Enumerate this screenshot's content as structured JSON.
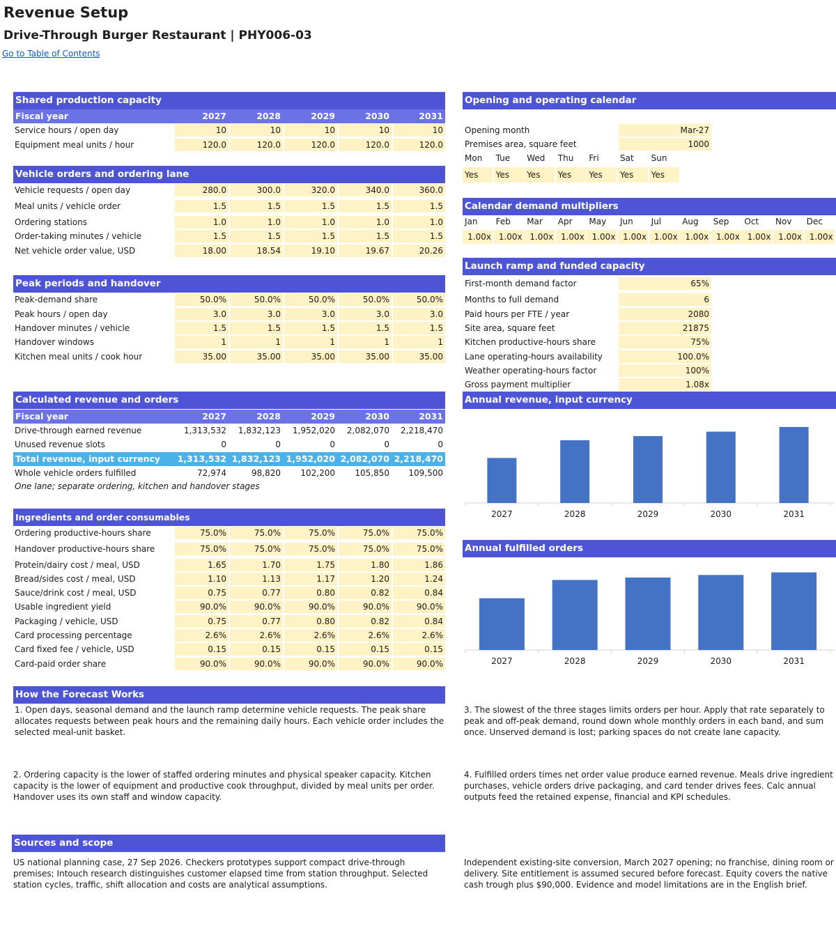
{
  "page": {
    "title": "Revenue Setup",
    "subtitle": "Drive-Through Burger Restaurant | PHY006-03",
    "toc_link": "Go to Table of Contents"
  },
  "years": [
    "2027",
    "2028",
    "2029",
    "2030",
    "2031"
  ],
  "shared": {
    "header": "Shared production capacity",
    "fiscal_label": "Fiscal year",
    "rows": [
      {
        "label": "Service hours / open day",
        "values": [
          "10",
          "10",
          "10",
          "10",
          "10"
        ]
      },
      {
        "label": "Equipment meal units / hour",
        "values": [
          "120.0",
          "120.0",
          "120.0",
          "120.0",
          "120.0"
        ]
      }
    ]
  },
  "vehicle": {
    "header": "Vehicle orders and ordering lane",
    "rows": [
      {
        "label": "Vehicle requests / open day",
        "values": [
          "280.0",
          "300.0",
          "320.0",
          "340.0",
          "360.0"
        ]
      },
      {
        "label": "Meal units / vehicle order",
        "values": [
          "1.5",
          "1.5",
          "1.5",
          "1.5",
          "1.5"
        ]
      },
      {
        "label": "Ordering stations",
        "values": [
          "1.0",
          "1.0",
          "1.0",
          "1.0",
          "1.0"
        ]
      },
      {
        "label": "Order-taking minutes / vehicle",
        "values": [
          "1.5",
          "1.5",
          "1.5",
          "1.5",
          "1.5"
        ]
      },
      {
        "label": "Net vehicle order value, USD",
        "values": [
          "18.00",
          "18.54",
          "19.10",
          "19.67",
          "20.26"
        ]
      }
    ]
  },
  "peak": {
    "header": "Peak periods and handover",
    "rows": [
      {
        "label": "Peak-demand share",
        "values": [
          "50.0%",
          "50.0%",
          "50.0%",
          "50.0%",
          "50.0%"
        ]
      },
      {
        "label": "Peak hours / open day",
        "values": [
          "3.0",
          "3.0",
          "3.0",
          "3.0",
          "3.0"
        ]
      },
      {
        "label": "Handover minutes / vehicle",
        "values": [
          "1.5",
          "1.5",
          "1.5",
          "1.5",
          "1.5"
        ]
      },
      {
        "label": "Handover windows",
        "values": [
          "1",
          "1",
          "1",
          "1",
          "1"
        ]
      },
      {
        "label": "Kitchen meal units / cook hour",
        "values": [
          "35.00",
          "35.00",
          "35.00",
          "35.00",
          "35.00"
        ]
      }
    ]
  },
  "calc": {
    "header": "Calculated revenue and orders",
    "fiscal_label": "Fiscal year",
    "rows": [
      {
        "label": "Drive-through earned revenue",
        "values": [
          "1,313,532",
          "1,832,123",
          "1,952,020",
          "2,082,070",
          "2,218,470"
        ]
      },
      {
        "label": "Unused revenue slots",
        "values": [
          "0",
          "0",
          "0",
          "0",
          "0"
        ]
      }
    ],
    "total": {
      "label": "Total revenue, input currency",
      "values": [
        "1,313,532",
        "1,832,123",
        "1,952,020",
        "2,082,070",
        "2,218,470"
      ]
    },
    "orders": {
      "label": "Whole vehicle orders fulfilled",
      "values": [
        "72,974",
        "98,820",
        "102,200",
        "105,850",
        "109,500"
      ]
    },
    "note": "One lane; separate ordering, kitchen and handover stages"
  },
  "ingredients": {
    "header": "Ingredients and order consumables",
    "rows": [
      {
        "label": "Ordering productive-hours share",
        "values": [
          "75.0%",
          "75.0%",
          "75.0%",
          "75.0%",
          "75.0%"
        ]
      },
      {
        "label": "Handover productive-hours share",
        "values": [
          "75.0%",
          "75.0%",
          "75.0%",
          "75.0%",
          "75.0%"
        ]
      },
      {
        "label": "Protein/dairy cost / meal, USD",
        "values": [
          "1.65",
          "1.70",
          "1.75",
          "1.80",
          "1.86"
        ]
      },
      {
        "label": "Bread/sides cost / meal, USD",
        "values": [
          "1.10",
          "1.13",
          "1.17",
          "1.20",
          "1.24"
        ]
      },
      {
        "label": "Sauce/drink cost / meal, USD",
        "values": [
          "0.75",
          "0.77",
          "0.80",
          "0.82",
          "0.84"
        ]
      },
      {
        "label": "Usable ingredient yield",
        "values": [
          "90.0%",
          "90.0%",
          "90.0%",
          "90.0%",
          "90.0%"
        ]
      },
      {
        "label": "Packaging / vehicle, USD",
        "values": [
          "0.75",
          "0.77",
          "0.80",
          "0.82",
          "0.84"
        ]
      },
      {
        "label": "Card processing percentage",
        "values": [
          "2.6%",
          "2.6%",
          "2.6%",
          "2.6%",
          "2.6%"
        ]
      },
      {
        "label": "Card fixed fee / vehicle, USD",
        "values": [
          "0.15",
          "0.15",
          "0.15",
          "0.15",
          "0.15"
        ]
      },
      {
        "label": "Card-paid order share",
        "values": [
          "90.0%",
          "90.0%",
          "90.0%",
          "90.0%",
          "90.0%"
        ]
      }
    ]
  },
  "calendar": {
    "header": "Opening and operating calendar",
    "opening_month_label": "Opening month",
    "opening_month": "Mar-27",
    "premises_label": "Premises area, square feet",
    "premises": "1000",
    "days": [
      "Mon",
      "Tue",
      "Wed",
      "Thu",
      "Fri",
      "Sat",
      "Sun"
    ],
    "day_values": [
      "Yes",
      "Yes",
      "Yes",
      "Yes",
      "Yes",
      "Yes",
      "Yes"
    ]
  },
  "multipliers": {
    "header": "Calendar demand multipliers",
    "months": [
      "Jan",
      "Feb",
      "Mar",
      "Apr",
      "May",
      "Jun",
      "Jul",
      "Aug",
      "Sep",
      "Oct",
      "Nov",
      "Dec"
    ],
    "values": [
      "1.00x",
      "1.00x",
      "1.00x",
      "1.00x",
      "1.00x",
      "1.00x",
      "1.00x",
      "1.00x",
      "1.00x",
      "1.00x",
      "1.00x",
      "1.00x"
    ]
  },
  "launch": {
    "header": "Launch ramp and funded capacity",
    "rows": [
      {
        "label": "First-month demand factor",
        "value": "65%"
      },
      {
        "label": "Months to full demand",
        "value": "6"
      },
      {
        "label": "Paid hours per FTE / year",
        "value": "2080"
      },
      {
        "label": "Site area, square feet",
        "value": "21875"
      },
      {
        "label": "Kitchen productive-hours share",
        "value": "75%"
      },
      {
        "label": "Lane operating-hours availability",
        "value": "100.0%"
      },
      {
        "label": "Weather operating-hours factor",
        "value": "100%"
      },
      {
        "label": "Gross payment multiplier",
        "value": "1.08x"
      }
    ]
  },
  "chart_revenue_header": "Annual revenue, input currency",
  "chart_orders_header": "Annual fulfilled orders",
  "chart_data": [
    {
      "type": "bar",
      "title": "Annual revenue, input currency",
      "categories": [
        "2027",
        "2028",
        "2029",
        "2030",
        "2031"
      ],
      "values": [
        1313532,
        1832123,
        1952020,
        2082070,
        2218470
      ],
      "ylim": [
        0,
        2500000
      ],
      "grid": false,
      "color": "#4472c4"
    },
    {
      "type": "bar",
      "title": "Annual fulfilled orders",
      "categories": [
        "2027",
        "2028",
        "2029",
        "2030",
        "2031"
      ],
      "values": [
        72974,
        98820,
        102200,
        105850,
        109500
      ],
      "ylim": [
        0,
        115000
      ],
      "grid": false,
      "color": "#4472c4"
    }
  ],
  "how": {
    "header": "How the Forecast Works",
    "p1": "1. Open days, seasonal demand and the launch ramp determine vehicle requests. The peak share allocates requests between peak hours and the remaining daily hours. Each vehicle order includes the selected meal-unit basket.",
    "p2": "2. Ordering capacity is the lower of staffed ordering minutes and physical speaker capacity. Kitchen capacity is the lower of equipment and productive cook throughput, divided by meal units per order. Handover uses its own staff and window capacity.",
    "p3": "3. The slowest of the three stages limits orders per hour. Apply that rate separately to peak and off-peak demand, round down whole monthly orders in each band, and sum once. Unserved demand is lost; parking spaces do not create lane capacity.",
    "p4": "4. Fulfilled orders times net order value produce earned revenue. Meals drive ingredient purchases, vehicle orders drive packaging, and card tender drives fees. Calc annual outputs feed the retained expense, financial and KPI schedules."
  },
  "sources": {
    "header": "Sources and scope",
    "p1": "US national planning case, 27 Sep 2026. Checkers prototypes support compact drive-through premises; Intouch research distinguishes customer elapsed time from station throughput. Selected station cycles, traffic, shift allocation and costs are analytical assumptions.",
    "p2": "Independent existing-site conversion, March 2027 opening; no franchise, dining room or delivery. Site entitlement is assumed secured before forecast. Equity covers the native cash trough plus $90,000. Evidence and model limitations are in the English brief."
  }
}
